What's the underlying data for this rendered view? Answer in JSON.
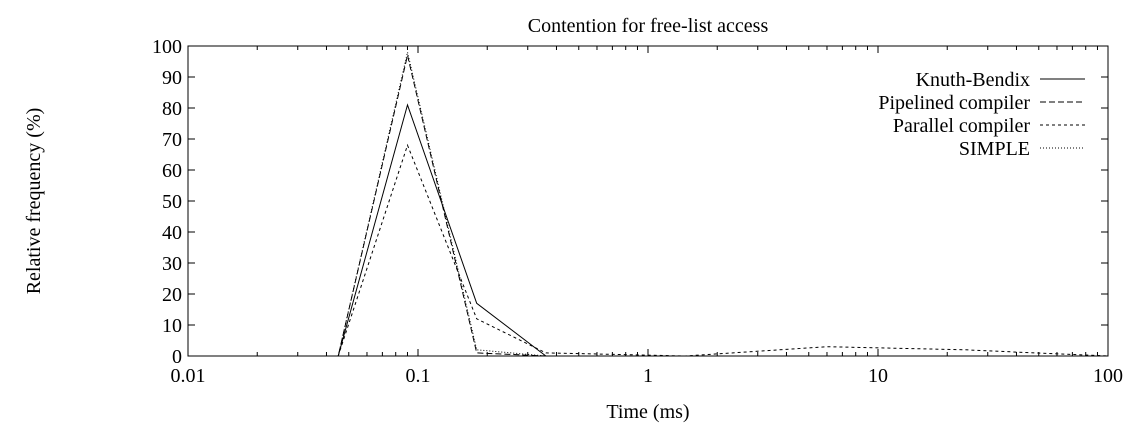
{
  "chart_data": {
    "type": "line",
    "title": "Contention for free-list access",
    "xlabel": "Time (ms)",
    "ylabel": "Relative frequency (%)",
    "xscale": "log",
    "xlim": [
      0.01,
      100
    ],
    "ylim": [
      0,
      100
    ],
    "xticks": [
      0.01,
      0.1,
      1,
      10,
      100
    ],
    "xtick_labels": [
      "0.01",
      "0.1",
      "1",
      "10",
      "100"
    ],
    "yticks": [
      0,
      10,
      20,
      30,
      40,
      50,
      60,
      70,
      80,
      90,
      100
    ],
    "ytick_labels": [
      "0",
      "10",
      "20",
      "30",
      "40",
      "50",
      "60",
      "70",
      "80",
      "90",
      "100"
    ],
    "grid": false,
    "legend": "top-right",
    "series": [
      {
        "name": "Knuth-Bendix",
        "style": "solid",
        "color": "#000000",
        "points": [
          [
            0.01,
            0
          ],
          [
            0.045,
            0
          ],
          [
            0.09,
            81
          ],
          [
            0.18,
            17
          ],
          [
            0.36,
            0
          ],
          [
            100,
            0
          ]
        ]
      },
      {
        "name": "Pipelined compiler",
        "style": "dashed",
        "color": "#000000",
        "points": [
          [
            0.01,
            0
          ],
          [
            0.045,
            0
          ],
          [
            0.09,
            97
          ],
          [
            0.18,
            1
          ],
          [
            0.36,
            0
          ],
          [
            100,
            0
          ]
        ]
      },
      {
        "name": "Parallel compiler",
        "style": "short-dashed",
        "color": "#000000",
        "points": [
          [
            0.01,
            0
          ],
          [
            0.045,
            0
          ],
          [
            0.09,
            68
          ],
          [
            0.18,
            12
          ],
          [
            0.36,
            1
          ],
          [
            0.72,
            0.5
          ],
          [
            1.45,
            0
          ],
          [
            6,
            3
          ],
          [
            24,
            2
          ],
          [
            48,
            1
          ],
          [
            100,
            0
          ]
        ]
      },
      {
        "name": "SIMPLE",
        "style": "dotted",
        "color": "#000000",
        "points": [
          [
            0.01,
            0
          ],
          [
            0.045,
            0
          ],
          [
            0.09,
            98
          ],
          [
            0.18,
            2
          ],
          [
            0.36,
            0
          ],
          [
            100,
            0
          ]
        ]
      }
    ]
  }
}
